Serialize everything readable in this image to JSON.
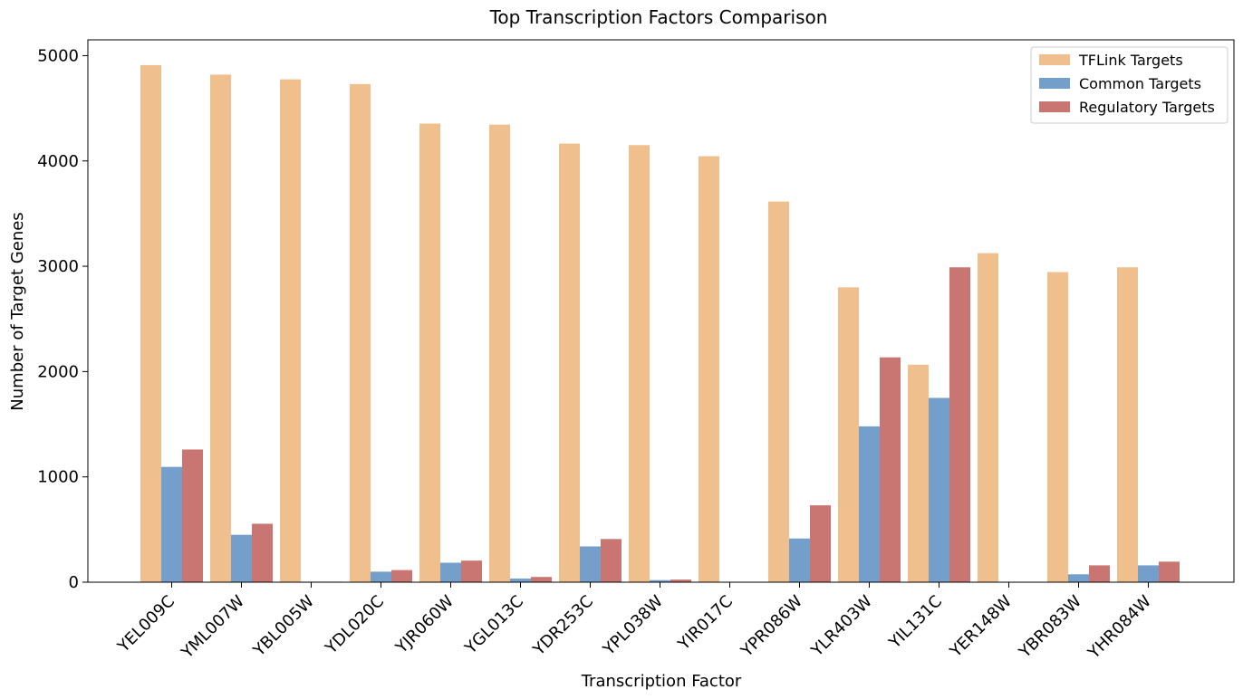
{
  "chart_data": {
    "type": "bar",
    "title": "Top Transcription Factors Comparison",
    "xlabel": "Transcription Factor",
    "ylabel": "Number of Target Genes",
    "ylim": [
      0,
      5150
    ],
    "yticks": [
      0,
      1000,
      2000,
      3000,
      4000,
      5000
    ],
    "grid": false,
    "legend_position": "top-right",
    "categories": [
      "YEL009C",
      "YML007W",
      "YBL005W",
      "YDL020C",
      "YJR060W",
      "YGL013C",
      "YDR253C",
      "YPL038W",
      "YIR017C",
      "YPR086W",
      "YLR403W",
      "YIL131C",
      "YER148W",
      "YBR083W",
      "YHR084W"
    ],
    "series": [
      {
        "name": "TFLink Targets",
        "color": "#efc08d",
        "values": [
          4910,
          4820,
          4775,
          4730,
          4355,
          4345,
          4165,
          4150,
          4045,
          3615,
          2800,
          2065,
          3125,
          2945,
          2990
        ]
      },
      {
        "name": "Common Targets",
        "color": "#759fcb",
        "values": [
          1095,
          450,
          5,
          100,
          185,
          35,
          340,
          20,
          0,
          415,
          1480,
          1750,
          0,
          75,
          160
        ]
      },
      {
        "name": "Regulatory Targets",
        "color": "#c97672",
        "values": [
          1260,
          555,
          5,
          115,
          205,
          50,
          410,
          25,
          0,
          730,
          2135,
          2990,
          0,
          160,
          195
        ]
      }
    ]
  }
}
